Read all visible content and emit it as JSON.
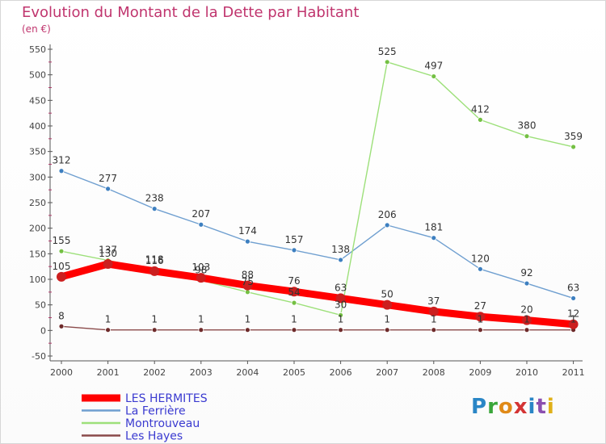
{
  "title": "Evolution du Montant de la Dette par Habitant",
  "subtitle": "(en €)",
  "logo_text": "Proxiti",
  "chart_data": {
    "type": "line",
    "title": "Evolution du Montant de la Dette par Habitant",
    "subtitle": "(en €)",
    "x": [
      "2000",
      "2001",
      "2002",
      "2003",
      "2004",
      "2005",
      "2006",
      "2007",
      "2008",
      "2009",
      "2010",
      "2011"
    ],
    "ylim": [
      -50,
      550
    ],
    "yticks": [
      -50,
      0,
      50,
      100,
      150,
      200,
      250,
      300,
      350,
      400,
      450,
      500,
      550
    ],
    "grid": false,
    "legend_position": "bottom-left",
    "series": [
      {
        "name": "LES HERMITES",
        "color": "#ff0000",
        "marker_color": "#cc1f1f",
        "emphasis": true,
        "values": [
          105,
          130,
          116,
          103,
          88,
          76,
          63,
          50,
          37,
          27,
          20,
          12
        ]
      },
      {
        "name": "La Ferrière",
        "color": "#6f9fd0",
        "marker_color": "#3d7fc0",
        "values": [
          312,
          277,
          238,
          207,
          174,
          157,
          138,
          206,
          181,
          120,
          92,
          63
        ]
      },
      {
        "name": "Montrouveau",
        "color": "#9de07a",
        "marker_color": "#74c043",
        "values": [
          155,
          137,
          118,
          98,
          75,
          54,
          30,
          525,
          497,
          412,
          380,
          359
        ]
      },
      {
        "name": "Les Hayes",
        "color": "#8a4a4a",
        "marker_color": "#6e2a2a",
        "values": [
          8,
          1,
          1,
          1,
          1,
          1,
          1,
          1,
          1,
          1,
          1,
          1
        ]
      }
    ]
  }
}
